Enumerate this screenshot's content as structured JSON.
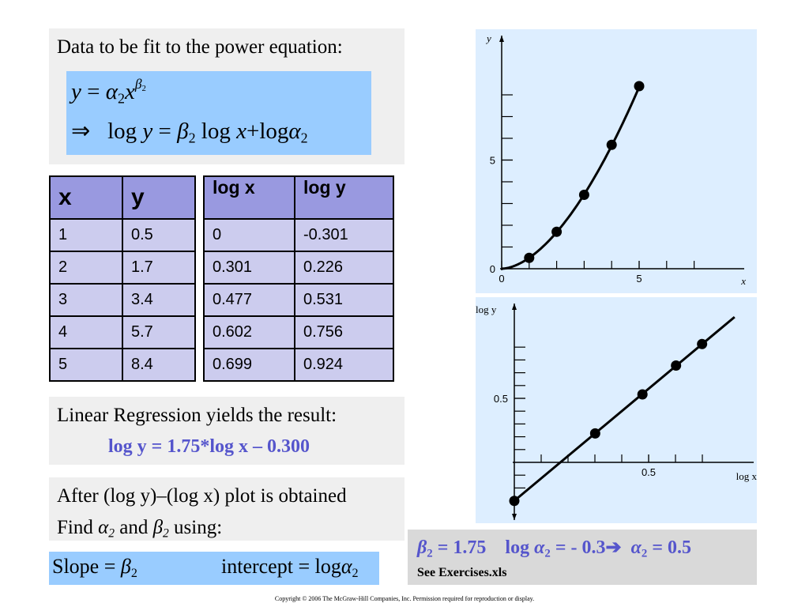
{
  "intro": {
    "title": "Data to be fit to the power equation:",
    "equation_1": {
      "lhs": "y",
      "eq": "=",
      "alpha": "α",
      "sub": "2",
      "x": "x",
      "beta": "β",
      "beta_sub": "2"
    },
    "equation_2": {
      "arrow": "⇒",
      "log1": "log",
      "y": "y",
      "eq": "=",
      "beta": "β",
      "sub": "2",
      "log2": "log",
      "x": "x",
      "plus": "+",
      "log3": "log",
      "alpha": "α",
      "alpha_sub": "2"
    }
  },
  "table_left": {
    "headers": [
      "x",
      "y"
    ],
    "rows": [
      [
        "1",
        "0.5"
      ],
      [
        "2",
        "1.7"
      ],
      [
        "3",
        "3.4"
      ],
      [
        "4",
        "5.7"
      ],
      [
        "5",
        "8.4"
      ]
    ]
  },
  "table_right": {
    "headers": [
      "log x",
      "log y"
    ],
    "rows": [
      [
        "0",
        "-0.301"
      ],
      [
        "0.301",
        "0.226"
      ],
      [
        "0.477",
        "0.531"
      ],
      [
        "0.602",
        "0.756"
      ],
      [
        "0.699",
        "0.924"
      ]
    ]
  },
  "regression": {
    "label": "Linear Regression yields the result:",
    "equation": "log y = 1.75*log x – 0.300"
  },
  "after": {
    "line1": "After (log y)–(log x) plot is obtained",
    "find": "Find",
    "alpha": "α",
    "alpha_sub": "2",
    "and": "and",
    "beta": "β",
    "beta_sub": "2",
    "using": "using:"
  },
  "slope": {
    "slope_label": "Slope",
    "eq": "=",
    "beta": "β",
    "sub": "2",
    "intercept_label": "intercept",
    "log": "log",
    "alpha": "α",
    "alpha_sub": "2"
  },
  "result": {
    "beta": "β",
    "beta_sub": "2",
    "beta_val": " = 1.75",
    "log_label": "log",
    "alpha": "α",
    "alpha_sub": "2",
    "log_val": " = - 0.3",
    "arrow": "➔",
    "alpha_val": " = 0.5",
    "note": "See Exercises.xls"
  },
  "copyright": "Copyright © 2006 The McGraw-Hill Companies, Inc.  Permission required for reproduction or display.",
  "chart_data": [
    {
      "type": "scatter",
      "xlabel": "x",
      "ylabel": "y",
      "xlim": [
        0,
        8.7
      ],
      "ylim": [
        -0.2,
        9.5
      ],
      "x_tick_labels": [
        "0",
        "5"
      ],
      "y_tick_labels": [
        "0",
        "5"
      ],
      "x_ticks": [
        1,
        2,
        3,
        4,
        5,
        6,
        7
      ],
      "y_ticks": [
        1,
        2,
        3,
        4,
        5,
        6,
        7,
        8
      ],
      "x_tick_values": [
        0,
        5
      ],
      "y_tick_values": [
        0,
        5
      ],
      "x": [
        1,
        2,
        3,
        4,
        5
      ],
      "y": [
        0.5,
        1.7,
        3.4,
        5.7,
        8.4
      ],
      "fit": {
        "kind": "power",
        "alpha": 0.5,
        "beta": 1.75
      }
    },
    {
      "type": "scatter",
      "xlabel": "log x",
      "ylabel": "log y",
      "xlim": [
        0,
        0.86
      ],
      "ylim": [
        -0.4,
        1.18
      ],
      "x_tick_labels": [
        "0.5"
      ],
      "y_tick_labels": [
        "0.5"
      ],
      "x_ticks": [
        0.1,
        0.2,
        0.3,
        0.4,
        0.5,
        0.6,
        0.7
      ],
      "y_ticks": [
        -0.2,
        -0.1,
        0.1,
        0.2,
        0.3,
        0.4,
        0.5,
        0.6,
        0.7,
        0.8,
        0.9
      ],
      "x_tick_values": [
        0.5
      ],
      "y_tick_values": [
        0.5
      ],
      "x": [
        0,
        0.301,
        0.477,
        0.602,
        0.699
      ],
      "y": [
        -0.301,
        0.226,
        0.531,
        0.756,
        0.924
      ],
      "fit": {
        "kind": "linear",
        "slope": 1.75,
        "intercept": -0.3,
        "x_range": [
          0,
          0.82
        ]
      }
    }
  ]
}
